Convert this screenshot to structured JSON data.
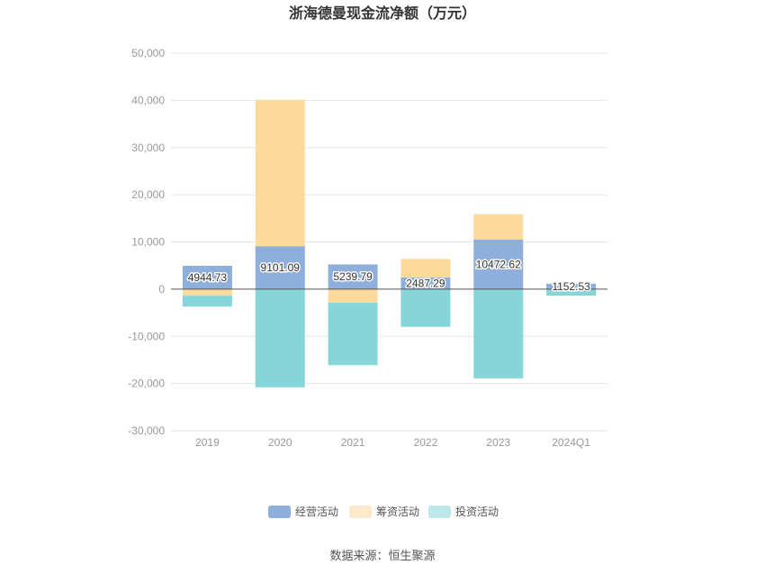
{
  "chart_data": {
    "type": "bar",
    "stacked": true,
    "title": "浙海德曼现金流净额（万元）",
    "categories": [
      "2019",
      "2020",
      "2021",
      "2022",
      "2023",
      "2024Q1"
    ],
    "series": [
      {
        "name": "经营活动",
        "color": "#8eaedc",
        "values": [
          4944.73,
          9101.09,
          5239.79,
          2487.29,
          10472.62,
          1152.53
        ]
      },
      {
        "name": "筹资活动",
        "color": "#fdd99b",
        "values": [
          -1400,
          31000,
          -2900,
          3900,
          5400,
          0
        ]
      },
      {
        "name": "投资活动",
        "color": "#86d6d9",
        "values": [
          -2300,
          -20800,
          -13200,
          -8000,
          -18900,
          -1400
        ]
      }
    ],
    "data_labels": [
      "4944.73",
      "9101.09",
      "5239.79",
      "2487.29",
      "10472.62",
      "1152.53"
    ],
    "ylim": [
      -30000,
      50000
    ],
    "yticks": [
      50000,
      40000,
      30000,
      20000,
      10000,
      0,
      -10000,
      -20000,
      -30000
    ],
    "ytick_labels": [
      "50,000",
      "40,000",
      "30,000",
      "20,000",
      "10,000",
      "0",
      "-10,000",
      "-20,000",
      "-30,000"
    ],
    "grid": true,
    "legend_position": "bottom",
    "source": "数据来源：恒生聚源"
  }
}
